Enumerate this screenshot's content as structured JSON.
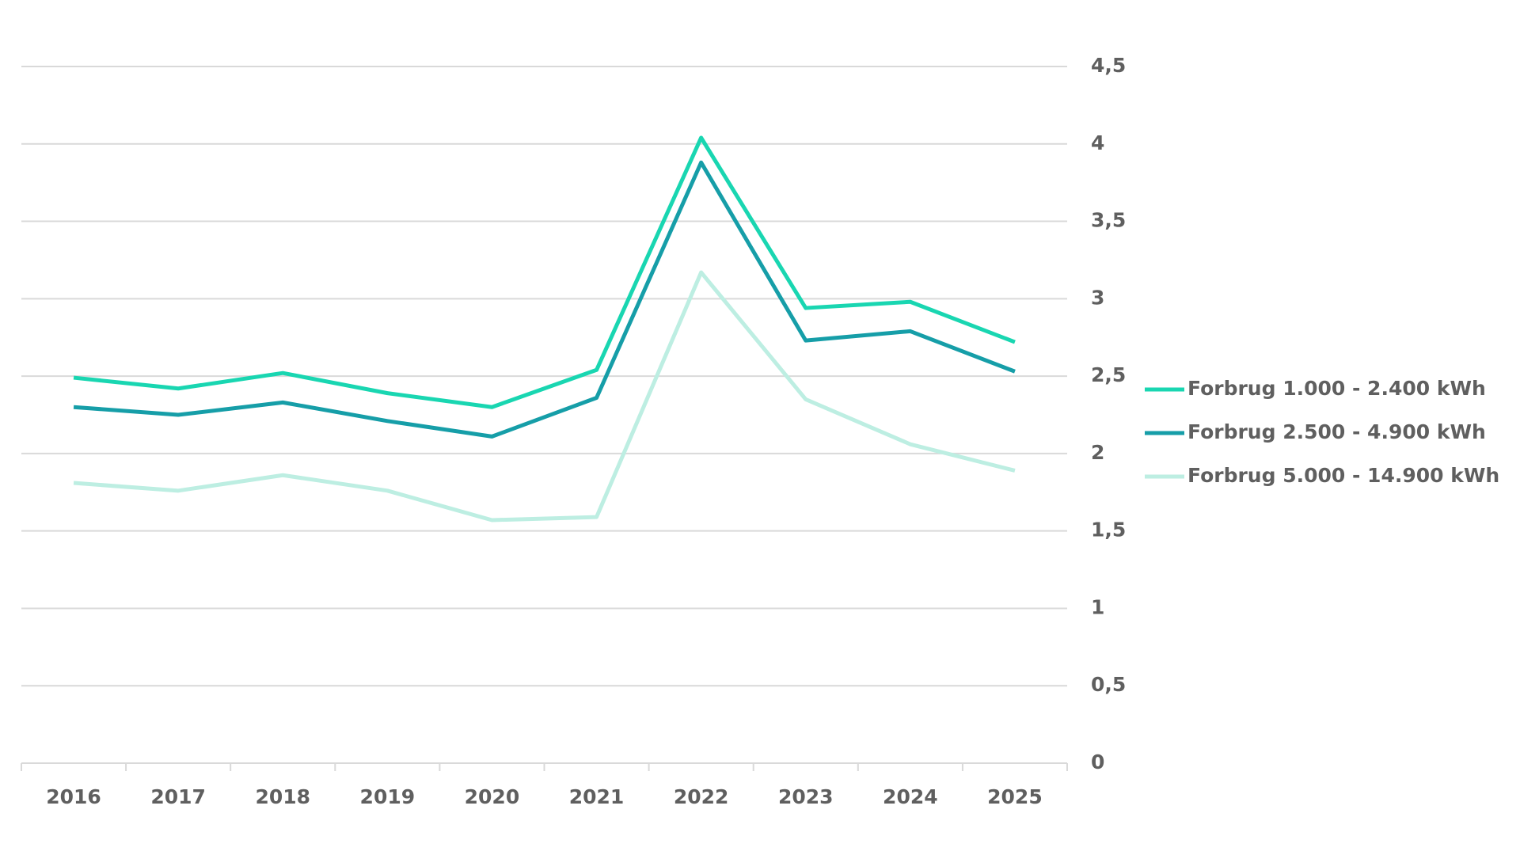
{
  "chart_data": {
    "type": "line",
    "categories": [
      "2016",
      "2017",
      "2018",
      "2019",
      "2020",
      "2021",
      "2022",
      "2023",
      "2024",
      "2025"
    ],
    "series": [
      {
        "name": "Forbrug 1.000 - 2.400 kWh",
        "color": "#19d6b1",
        "values": [
          2.49,
          2.42,
          2.52,
          2.39,
          2.3,
          2.54,
          4.04,
          2.94,
          2.98,
          2.72
        ]
      },
      {
        "name": "Forbrug 2.500 - 4.900 kWh",
        "color": "#169ea8",
        "values": [
          2.3,
          2.25,
          2.33,
          2.21,
          2.11,
          2.36,
          3.88,
          2.73,
          2.79,
          2.53
        ]
      },
      {
        "name": "Forbrug 5.000 - 14.900 kWh",
        "color": "#bdeee2",
        "values": [
          1.81,
          1.76,
          1.86,
          1.76,
          1.57,
          1.59,
          3.17,
          2.35,
          2.06,
          1.89
        ]
      }
    ],
    "ylim": [
      0,
      4.5
    ],
    "yticks": [
      0,
      {
        "value": 0.5,
        "label": "0,5"
      },
      1,
      {
        "value": 1.5,
        "label": "1,5"
      },
      2,
      {
        "value": 2.5,
        "label": "2,5"
      },
      3,
      {
        "value": 3.5,
        "label": "3,5"
      },
      4,
      {
        "value": 4.5,
        "label": "4,5"
      }
    ],
    "grid": true,
    "legend": "right"
  }
}
